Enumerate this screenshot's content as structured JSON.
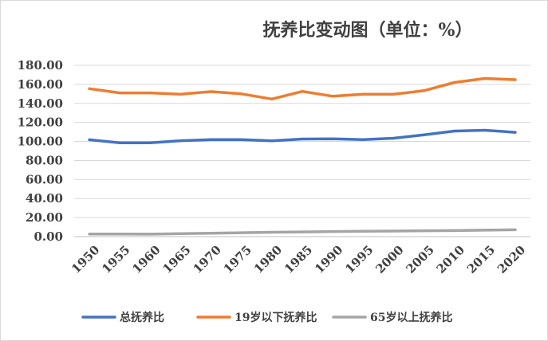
{
  "chart_data": {
    "type": "line",
    "title": "抚养比变动图（单位：%）",
    "xlabel": "",
    "ylabel": "",
    "categories": [
      "1950",
      "1955",
      "1960",
      "1965",
      "1970",
      "1975",
      "1980",
      "1985",
      "1990",
      "1995",
      "2000",
      "2005",
      "2010",
      "2015",
      "2020"
    ],
    "ylim": [
      0,
      180
    ],
    "yticks": [
      "0.00",
      "20.00",
      "40.00",
      "60.00",
      "80.00",
      "100.00",
      "120.00",
      "140.00",
      "160.00",
      "180.00"
    ],
    "grid": true,
    "legend_position": "bottom",
    "series": [
      {
        "name": "总抚养比",
        "color": "#4472c4",
        "values": [
          101.8,
          98.6,
          98.5,
          100.8,
          101.9,
          101.9,
          100.6,
          102.6,
          102.8,
          102.0,
          103.4,
          106.9,
          110.9,
          111.8,
          109.6
        ]
      },
      {
        "name": "19岁以下抚养比",
        "color": "#ed7d31",
        "values": [
          155.5,
          151.0,
          151.0,
          149.7,
          152.4,
          150.0,
          144.6,
          152.6,
          147.5,
          149.7,
          149.6,
          153.4,
          162.0,
          166.2,
          164.9
        ]
      },
      {
        "name": "65岁以上抚养比",
        "color": "#a5a5a5",
        "values": [
          2.8,
          2.8,
          2.6,
          3.2,
          3.6,
          4.1,
          4.6,
          4.9,
          5.4,
          5.6,
          5.9,
          6.2,
          6.4,
          6.8,
          7.2
        ]
      }
    ]
  }
}
